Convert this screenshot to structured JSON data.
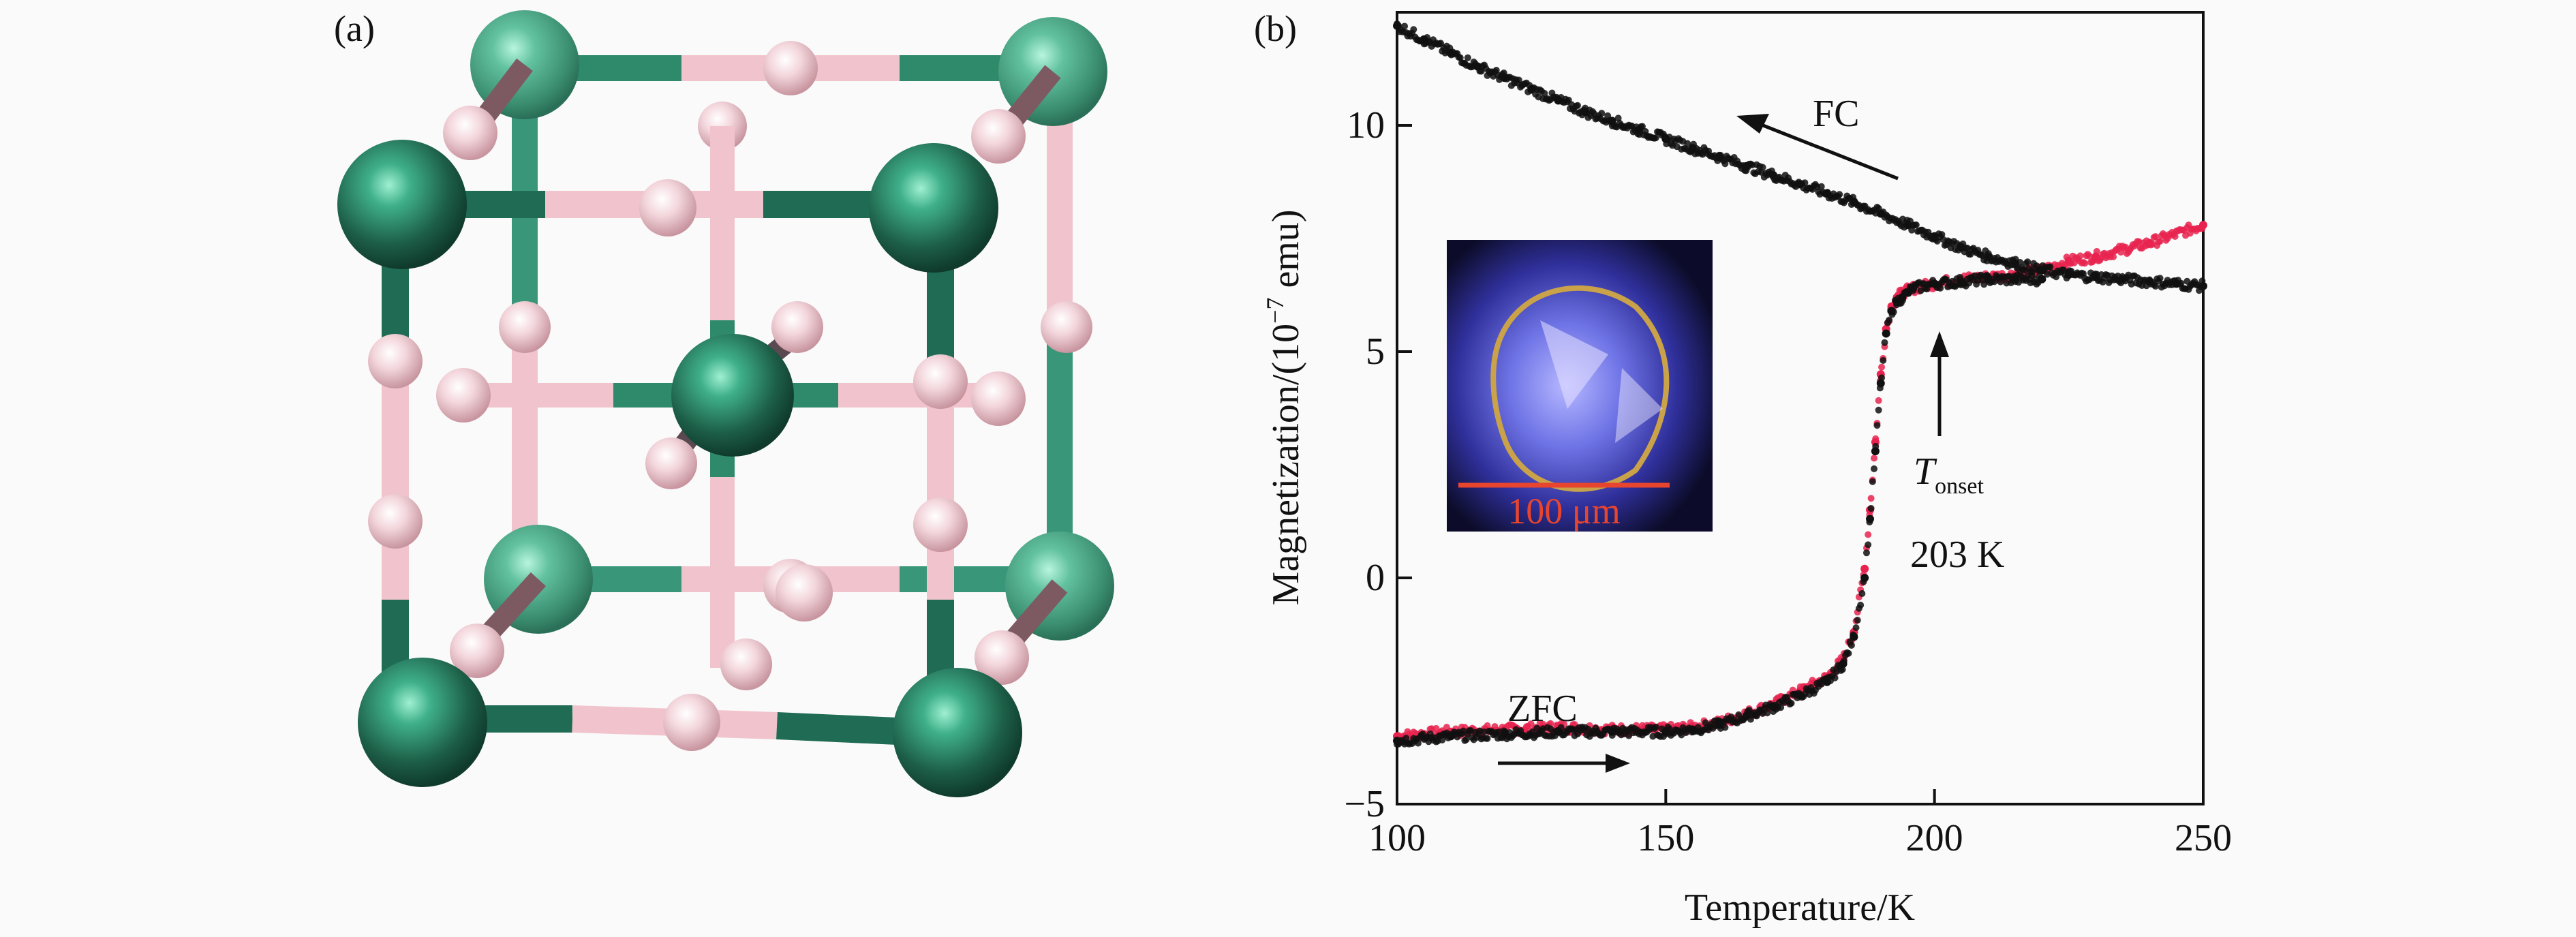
{
  "panel_a": {
    "label": "(a)",
    "colors": {
      "metal": "#2f8a6b",
      "metal_dark": "#1f5e48",
      "hydrogen": "#f0c8d0",
      "bond_metal": "#2f8a6b",
      "bond_h": "#f1c4cd"
    }
  },
  "panel_b": {
    "label": "(b)",
    "inset": {
      "scale_label": "100 μm",
      "scale_color": "#e8452f"
    },
    "annotations": {
      "fc": "FC",
      "zfc": "ZFC",
      "t_main": "T",
      "t_sub": "onset",
      "t_value": "203 K"
    }
  },
  "chart_data": {
    "type": "scatter",
    "xlabel": "Temperature/K",
    "ylabel_main": "Magnetization/(10",
    "ylabel_exp": "−7",
    "ylabel_unit": " emu)",
    "xlim": [
      100,
      250
    ],
    "ylim": [
      -5,
      12.5
    ],
    "x_ticks": [
      100,
      150,
      200,
      250
    ],
    "x_tick_labels": [
      "100",
      "150",
      "200",
      "250"
    ],
    "y_ticks": [
      -5,
      0,
      5,
      10
    ],
    "y_tick_labels": [
      "−5",
      "0",
      "5",
      "10"
    ],
    "grid": false,
    "legend": "none",
    "series": [
      {
        "color": "#e8234f",
        "x": [
          100,
          110,
          120,
          130,
          140,
          150,
          155,
          160,
          165,
          170,
          175,
          180,
          183,
          185,
          187,
          188,
          189,
          190,
          191,
          192,
          193,
          194,
          195,
          196,
          200,
          205,
          210,
          215,
          220,
          225,
          230,
          240,
          250
        ],
        "y": [
          -3.5,
          -3.4,
          -3.35,
          -3.3,
          -3.35,
          -3.35,
          -3.3,
          -3.2,
          -3.0,
          -2.8,
          -2.5,
          -2.2,
          -1.8,
          -1.2,
          0.2,
          1.5,
          3.0,
          4.5,
          5.5,
          6.0,
          6.2,
          6.3,
          6.35,
          6.4,
          6.5,
          6.6,
          6.65,
          6.7,
          6.8,
          7.0,
          7.1,
          7.4,
          7.8
        ]
      },
      {
        "color": "#111111",
        "x": [
          100,
          110,
          120,
          130,
          140,
          150,
          155,
          160,
          165,
          170,
          175,
          180,
          183,
          185,
          187,
          188,
          189,
          190,
          191,
          192,
          193,
          194,
          195,
          196,
          200,
          205,
          210,
          215,
          220
        ],
        "y": [
          -3.6,
          -3.5,
          -3.45,
          -3.4,
          -3.4,
          -3.4,
          -3.35,
          -3.25,
          -3.05,
          -2.85,
          -2.6,
          -2.3,
          -1.9,
          -1.3,
          0.0,
          1.3,
          2.8,
          4.3,
          5.4,
          5.9,
          6.1,
          6.2,
          6.3,
          6.4,
          6.5,
          6.55,
          6.6,
          6.6,
          6.6
        ]
      },
      {
        "color": "#111111",
        "x": [
          100,
          105,
          110,
          115,
          120,
          125,
          130,
          135,
          140,
          145,
          150,
          155,
          160,
          165,
          170,
          175,
          180,
          185,
          190,
          195,
          200,
          205,
          210,
          215,
          220,
          225,
          230,
          235,
          240,
          245,
          250
        ],
        "y": [
          12.2,
          11.9,
          11.6,
          11.3,
          11.05,
          10.8,
          10.55,
          10.3,
          10.1,
          9.9,
          9.7,
          9.5,
          9.3,
          9.1,
          8.9,
          8.7,
          8.5,
          8.3,
          8.05,
          7.8,
          7.55,
          7.3,
          7.1,
          6.95,
          6.8,
          6.7,
          6.65,
          6.6,
          6.55,
          6.5,
          6.45
        ]
      }
    ]
  }
}
